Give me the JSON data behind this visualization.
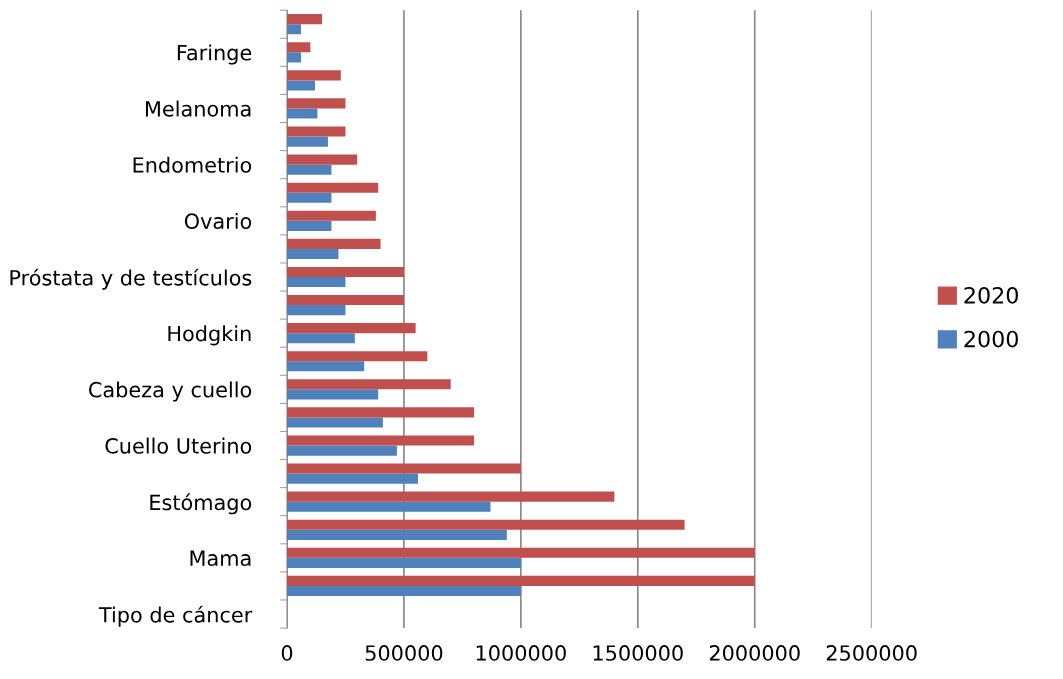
{
  "chart_data": {
    "type": "bar",
    "orientation": "horizontal",
    "categories": [
      null,
      "Faringe",
      null,
      "Melanoma",
      null,
      "Endometrio",
      null,
      "Ovario",
      null,
      "Próstata y de testículos",
      null,
      "Hodgkin",
      null,
      "Cabeza y cuello",
      null,
      "Cuello Uterino",
      null,
      "Estómago",
      null,
      "Mama",
      null,
      "Tipo de cáncer"
    ],
    "series": [
      {
        "name": "2000",
        "color": "#4f81bd",
        "values": [
          60000,
          60000,
          120000,
          130000,
          175000,
          190000,
          190000,
          190000,
          220000,
          250000,
          250000,
          290000,
          330000,
          390000,
          410000,
          470000,
          560000,
          870000,
          940000,
          1000000,
          1000000,
          null
        ]
      },
      {
        "name": "2020",
        "color": "#c0504d",
        "values": [
          150000,
          100000,
          230000,
          250000,
          250000,
          300000,
          390000,
          380000,
          400000,
          500000,
          500000,
          550000,
          600000,
          700000,
          800000,
          800000,
          1000000,
          1400000,
          1700000,
          2000000,
          2000000,
          null
        ]
      }
    ],
    "xlim": [
      0,
      2500000
    ],
    "xticks": [
      0,
      500000,
      1000000,
      1500000,
      2000000,
      2500000
    ],
    "grid": "x",
    "legend": "right"
  }
}
